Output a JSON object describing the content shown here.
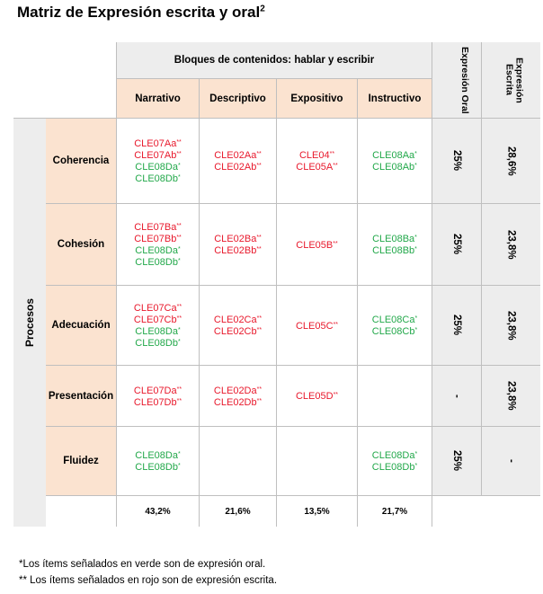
{
  "title": {
    "text": "Matriz de Expresión escrita y oral",
    "sup": "2"
  },
  "header": {
    "bloques": "Bloques de contenidos: hablar y escribir",
    "expresion_oral": "Expresión Oral",
    "expresion_escrita": "Expresión Escrita",
    "columns": [
      "Narrativo",
      "Descriptivo",
      "Expositivo",
      "Instructivo"
    ]
  },
  "procesos_label": "Procesos",
  "rows": [
    {
      "label": "Coherencia",
      "narrativo": [
        {
          "t": "CLE07Aa",
          "m": "**",
          "c": "red"
        },
        {
          "t": "CLE07Ab",
          "m": "**",
          "c": "red"
        },
        {
          "t": "CLE08Da",
          "m": "*",
          "c": "green"
        },
        {
          "t": "CLE08Db",
          "m": "*",
          "c": "green"
        }
      ],
      "descriptivo": [
        {
          "t": "CLE02Aa",
          "m": "**",
          "c": "red"
        },
        {
          "t": "CLE02Ab",
          "m": "**",
          "c": "red"
        }
      ],
      "expositivo": [
        {
          "t": "CLE04",
          "m": "**",
          "c": "red"
        },
        {
          "t": "CLE05A",
          "m": "**",
          "c": "red"
        }
      ],
      "instructivo": [
        {
          "t": "CLE08Aa",
          "m": "*",
          "c": "green"
        },
        {
          "t": "CLE08Ab",
          "m": "*",
          "c": "green"
        }
      ],
      "oral": "25%",
      "escrita": "28,6%"
    },
    {
      "label": "Cohesión",
      "narrativo": [
        {
          "t": "CLE07Ba",
          "m": "**",
          "c": "red"
        },
        {
          "t": "CLE07Bb",
          "m": "**",
          "c": "red"
        },
        {
          "t": "CLE08Da",
          "m": "*",
          "c": "green"
        },
        {
          "t": "CLE08Db",
          "m": "*",
          "c": "green"
        }
      ],
      "descriptivo": [
        {
          "t": "CLE02Ba",
          "m": "**",
          "c": "red"
        },
        {
          "t": "CLE02Bb",
          "m": "**",
          "c": "red"
        }
      ],
      "expositivo": [
        {
          "t": "CLE05B",
          "m": "**",
          "c": "red"
        }
      ],
      "instructivo": [
        {
          "t": "CLE08Ba",
          "m": "*",
          "c": "green"
        },
        {
          "t": "CLE08Bb",
          "m": "*",
          "c": "green"
        }
      ],
      "oral": "25%",
      "escrita": "23,8%"
    },
    {
      "label": "Adecuación",
      "narrativo": [
        {
          "t": "CLE07Ca",
          "m": "**",
          "c": "red"
        },
        {
          "t": "CLE07Cb",
          "m": "**",
          "c": "red"
        },
        {
          "t": "CLE08Da",
          "m": "*",
          "c": "green"
        },
        {
          "t": "CLE08Db",
          "m": "*",
          "c": "green"
        }
      ],
      "descriptivo": [
        {
          "t": "CLE02Ca",
          "m": "**",
          "c": "red"
        },
        {
          "t": "CLE02Cb",
          "m": "**",
          "c": "red"
        }
      ],
      "expositivo": [
        {
          "t": "CLE05C",
          "m": "**",
          "c": "red"
        }
      ],
      "instructivo": [
        {
          "t": "CLE08Ca",
          "m": "*",
          "c": "green"
        },
        {
          "t": "CLE08Cb",
          "m": "*",
          "c": "green"
        }
      ],
      "oral": "25%",
      "escrita": "23,8%"
    },
    {
      "label": "Presentación",
      "narrativo": [
        {
          "t": "CLE07Da",
          "m": "**",
          "c": "red"
        },
        {
          "t": "CLE07Db",
          "m": "**",
          "c": "red"
        }
      ],
      "descriptivo": [
        {
          "t": "CLE02Da",
          "m": "**",
          "c": "red"
        },
        {
          "t": "CLE02Db",
          "m": "**",
          "c": "red"
        }
      ],
      "expositivo": [
        {
          "t": "CLE05D",
          "m": "**",
          "c": "red"
        }
      ],
      "instructivo": [],
      "oral": "-",
      "escrita": "23,8%"
    },
    {
      "label": "Fluidez",
      "narrativo": [
        {
          "t": "CLE08Da",
          "m": "*",
          "c": "green"
        },
        {
          "t": "CLE08Db",
          "m": "*",
          "c": "green"
        }
      ],
      "descriptivo": [],
      "expositivo": [],
      "instructivo": [
        {
          "t": "CLE08Da",
          "m": "*",
          "c": "green"
        },
        {
          "t": "CLE08Db",
          "m": "*",
          "c": "green"
        }
      ],
      "oral": "25%",
      "escrita": "-"
    }
  ],
  "totals": [
    "43,2%",
    "21,6%",
    "13,5%",
    "21,7%"
  ],
  "footnotes": {
    "oral": "*Los ítems señalados en verde son de expresión oral.",
    "escrita": "** Los ítems señalados en rojo son de expresión escrita."
  },
  "colors": {
    "red": "#e8192c",
    "green": "#22a84a",
    "peach": "#fbe3d0",
    "gray": "#ededed"
  }
}
